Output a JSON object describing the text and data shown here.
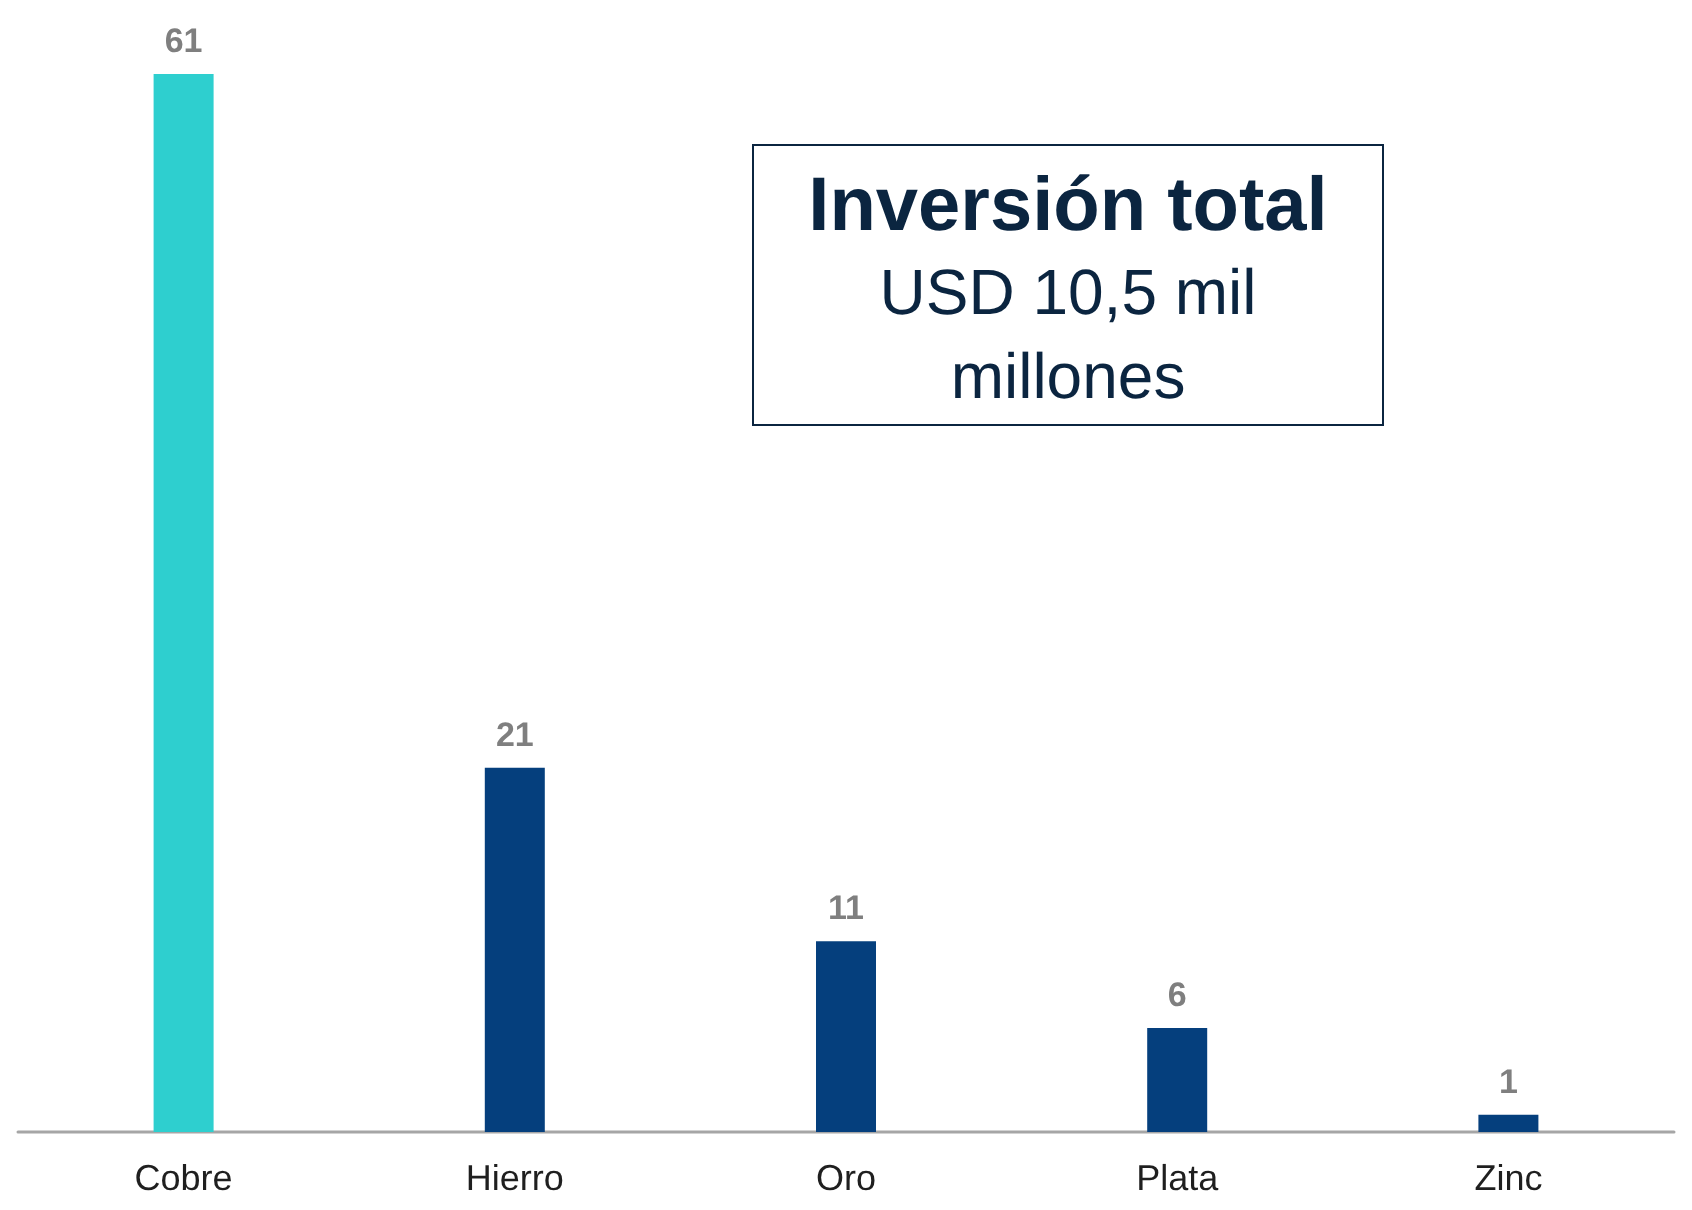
{
  "chart_data": {
    "type": "bar",
    "categories": [
      "Cobre",
      "Hierro",
      "Oro",
      "Plata",
      "Zinc"
    ],
    "values": [
      61,
      21,
      11,
      6,
      1
    ],
    "colors": [
      "#2ecfcf",
      "#053f7d",
      "#053f7d",
      "#053f7d",
      "#053f7d"
    ],
    "data_labels": true,
    "annotations": [
      "Inversión total",
      "USD 10,5 mil millones"
    ]
  }
}
